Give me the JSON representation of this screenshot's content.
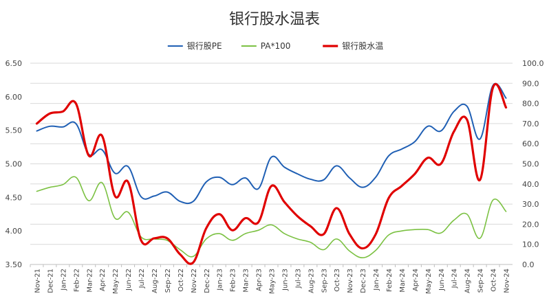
{
  "chart_data": {
    "type": "line",
    "title": "银行股水温表",
    "categories": [
      "Nov-21",
      "Dec-21",
      "Jan-22",
      "Feb-22",
      "Mar-22",
      "Apr-22",
      "May-22",
      "Jun-22",
      "Jul-22",
      "Aug-22",
      "Sep-22",
      "Oct-22",
      "Nov-22",
      "Dec-22",
      "Jan-23",
      "Feb-23",
      "Mar-23",
      "Apr-23",
      "May-23",
      "Jun-23",
      "Jul-23",
      "Aug-23",
      "Sep-23",
      "Oct-23",
      "Nov-23",
      "Dec-23",
      "Jan-24",
      "Feb-24",
      "Mar-24",
      "Apr-24",
      "May-24",
      "Jun-24",
      "Jul-24",
      "Aug-24",
      "Sep-24",
      "Oct-24",
      "Nov-24"
    ],
    "left_axis": {
      "min": 3.5,
      "max": 6.5,
      "step": 0.5,
      "ticks": [
        "3.50",
        "4.00",
        "4.50",
        "5.00",
        "5.50",
        "6.00",
        "6.50"
      ]
    },
    "right_axis": {
      "min": 0,
      "max": 100,
      "step": 10,
      "ticks": [
        "0.0",
        "10.0",
        "20.0",
        "30.0",
        "40.0",
        "50.0",
        "60.0",
        "70.0",
        "80.0",
        "90.0",
        "100.0"
      ]
    },
    "grid": true,
    "legend_position": "top",
    "series": [
      {
        "name": "银行股PE",
        "axis": "left",
        "color": "#1f5fb4",
        "stroke": 2,
        "values": [
          5.49,
          5.56,
          5.55,
          5.6,
          5.14,
          5.21,
          4.86,
          4.96,
          4.51,
          4.52,
          4.58,
          4.44,
          4.44,
          4.73,
          4.8,
          4.69,
          4.79,
          4.63,
          5.1,
          4.95,
          4.85,
          4.77,
          4.76,
          4.97,
          4.79,
          4.65,
          4.8,
          5.12,
          5.22,
          5.33,
          5.56,
          5.49,
          5.78,
          5.86,
          5.37,
          6.17,
          5.98
        ]
      },
      {
        "name": "PA*100",
        "axis": "left",
        "color": "#7bc142",
        "stroke": 1.6,
        "values": [
          4.59,
          4.65,
          4.69,
          4.8,
          4.45,
          4.72,
          4.19,
          4.28,
          3.91,
          3.88,
          3.86,
          3.72,
          3.62,
          3.88,
          3.96,
          3.86,
          3.96,
          4.01,
          4.09,
          3.96,
          3.88,
          3.83,
          3.72,
          3.88,
          3.7,
          3.6,
          3.71,
          3.94,
          4.0,
          4.02,
          4.02,
          3.97,
          4.16,
          4.25,
          3.89,
          4.46,
          4.29
        ]
      },
      {
        "name": "银行股水温",
        "axis": "right",
        "color": "#e00000",
        "stroke": 3.2,
        "values": [
          70,
          75,
          76,
          80,
          54,
          64,
          34,
          41,
          12,
          13,
          13,
          5,
          1,
          18,
          25,
          17,
          23,
          21,
          39,
          31,
          24,
          19,
          15,
          28,
          15,
          8,
          15,
          33,
          39,
          45,
          53,
          50,
          66,
          72,
          42,
          88,
          78
        ]
      }
    ]
  }
}
